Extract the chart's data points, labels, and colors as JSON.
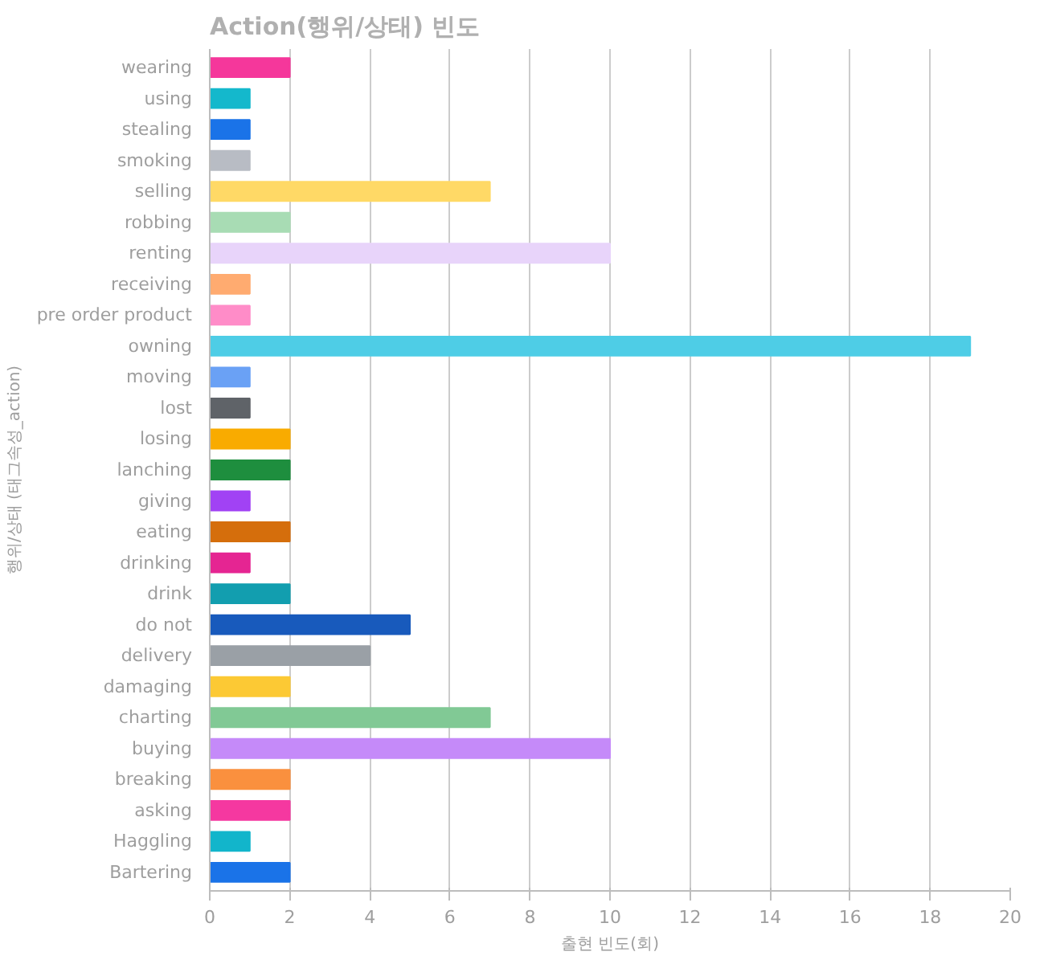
{
  "chart_data": {
    "type": "bar",
    "orientation": "horizontal",
    "title": "Action(행위/상태) 빈도",
    "xlabel": "출현 빈도(회)",
    "ylabel": "행위/상태 (태그속성_action)",
    "categories": [
      "wearing",
      "using",
      "stealing",
      "smoking",
      "selling",
      "robbing",
      "renting",
      "receiving",
      "pre order product",
      "owning",
      "moving",
      "lost",
      "losing",
      "lanching",
      "giving",
      "eating",
      "drinking",
      "drink",
      "do not",
      "delivery",
      "damaging",
      "charting",
      "buying",
      "breaking",
      "asking",
      "Haggling",
      "Bartering"
    ],
    "values": [
      2,
      1,
      1,
      1,
      7,
      2,
      10,
      1,
      1,
      19,
      1,
      1,
      2,
      2,
      1,
      2,
      1,
      2,
      5,
      4,
      2,
      7,
      10,
      2,
      2,
      1,
      2
    ],
    "colors": [
      "#f5379b",
      "#14b8cc",
      "#1a73e8",
      "#b8bcc4",
      "#ffd966",
      "#a8dcb4",
      "#e8d4fa",
      "#ffab70",
      "#ff8cc8",
      "#4ecde6",
      "#6aa1f5",
      "#5f6368",
      "#f9ab00",
      "#1e8e3e",
      "#a142f4",
      "#d56e0c",
      "#e52592",
      "#129eaf",
      "#185abc",
      "#9aa0a6",
      "#fcc934",
      "#81c995",
      "#c58af9",
      "#fa903e",
      "#f538a0",
      "#12b5cb",
      "#1a73e8"
    ],
    "xlim": [
      0,
      20
    ],
    "xticks": [
      0,
      2,
      4,
      6,
      8,
      10,
      12,
      14,
      16,
      18,
      20
    ],
    "grid": "x"
  }
}
